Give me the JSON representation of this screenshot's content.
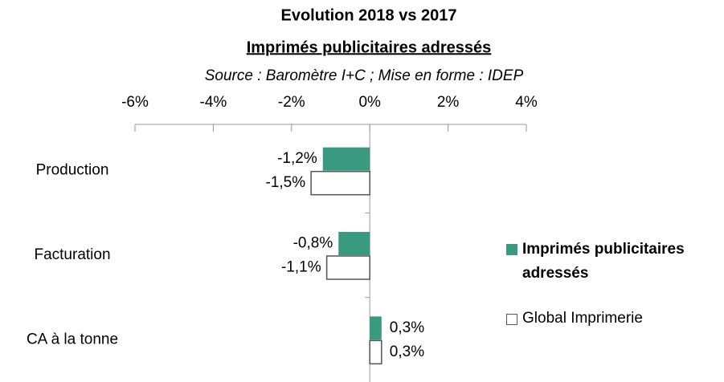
{
  "chart_data": {
    "type": "barh",
    "title": "Evolution 2018 vs 2017",
    "subtitle": "Imprimés publicitaires adressés",
    "source": "Source : Baromètre I+C ; Mise en forme : IDEP",
    "categories": [
      "Production",
      "Facturation",
      "CA à la tonne"
    ],
    "series": [
      {
        "name": "Imprimés publicitaires adressés",
        "color": "#3a9a80",
        "values": [
          -1.2,
          -0.8,
          0.3
        ],
        "value_labels": [
          "-1,2%",
          "-0,8%",
          "0,3%"
        ]
      },
      {
        "name": "Global Imprimerie",
        "color": "#ffffff",
        "values": [
          -1.5,
          -1.1,
          0.3
        ],
        "value_labels": [
          "-1,5%",
          "-1,1%",
          "0,3%"
        ]
      }
    ],
    "xlim": [
      -6,
      4
    ],
    "xticks": [
      {
        "value": -6,
        "label": "-6%"
      },
      {
        "value": -4,
        "label": "-4%"
      },
      {
        "value": -2,
        "label": "-2%"
      },
      {
        "value": 0,
        "label": "0%"
      },
      {
        "value": 2,
        "label": "2%"
      },
      {
        "value": 4,
        "label": "4%"
      }
    ],
    "legend": "right"
  }
}
